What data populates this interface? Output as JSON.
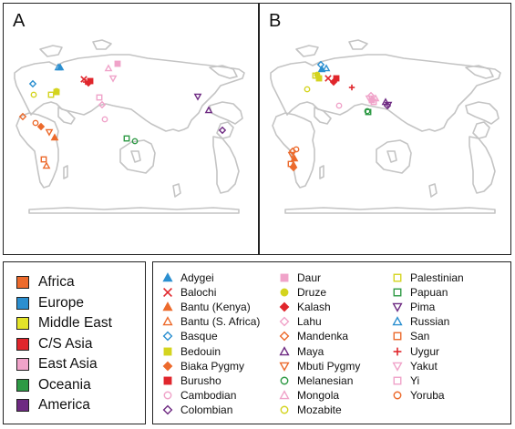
{
  "panels": [
    {
      "id": "a",
      "label": "A"
    },
    {
      "id": "b",
      "label": "B"
    }
  ],
  "regions": [
    {
      "label": "Africa",
      "color": "#ec6a2c"
    },
    {
      "label": "Europe",
      "color": "#2b8fd0"
    },
    {
      "label": "Middle East",
      "color": "#e4e429"
    },
    {
      "label": "C/S Asia",
      "color": "#e0262c"
    },
    {
      "label": "East Asia",
      "color": "#f0a3c9"
    },
    {
      "label": "Oceania",
      "color": "#2e9a45"
    },
    {
      "label": "America",
      "color": "#6e2a82"
    }
  ],
  "populations": [
    {
      "label": "Adygei",
      "marker": "triangle-filled",
      "color": "#2b8fd0"
    },
    {
      "label": "Balochi",
      "marker": "x",
      "color": "#e0262c"
    },
    {
      "label": "Bantu (Kenya)",
      "marker": "triangle-filled",
      "color": "#ec6a2c"
    },
    {
      "label": "Bantu (S. Africa)",
      "marker": "triangle-open",
      "color": "#ec6a2c"
    },
    {
      "label": "Basque",
      "marker": "diamond-open",
      "color": "#2b8fd0"
    },
    {
      "label": "Bedouin",
      "marker": "square-filled",
      "color": "#d4d41f"
    },
    {
      "label": "Biaka Pygmy",
      "marker": "diamond-filled",
      "color": "#ec6a2c"
    },
    {
      "label": "Burusho",
      "marker": "square-filled",
      "color": "#e0262c"
    },
    {
      "label": "Cambodian",
      "marker": "circle-open",
      "color": "#f0a3c9"
    },
    {
      "label": "Colombian",
      "marker": "diamond-open",
      "color": "#6e2a82"
    },
    {
      "label": "Daur",
      "marker": "square-filled",
      "color": "#f0a3c9"
    },
    {
      "label": "Druze",
      "marker": "circle-filled",
      "color": "#d4d41f"
    },
    {
      "label": "Kalash",
      "marker": "diamond-filled",
      "color": "#e0262c"
    },
    {
      "label": "Lahu",
      "marker": "diamond-open",
      "color": "#f0a3c9"
    },
    {
      "label": "Mandenka",
      "marker": "diamond-open",
      "color": "#ec6a2c"
    },
    {
      "label": "Maya",
      "marker": "triangle-open",
      "color": "#6e2a82"
    },
    {
      "label": "Mbuti Pygmy",
      "marker": "triangle-down-open",
      "color": "#ec6a2c"
    },
    {
      "label": "Melanesian",
      "marker": "circle-open",
      "color": "#2e9a45"
    },
    {
      "label": "Mongola",
      "marker": "triangle-open",
      "color": "#f0a3c9"
    },
    {
      "label": "Mozabite",
      "marker": "circle-open",
      "color": "#d4d41f"
    },
    {
      "label": "Palestinian",
      "marker": "square-open",
      "color": "#d4d41f"
    },
    {
      "label": "Papuan",
      "marker": "square-open",
      "color": "#2e9a45"
    },
    {
      "label": "Pima",
      "marker": "triangle-down-open",
      "color": "#6e2a82"
    },
    {
      "label": "Russian",
      "marker": "triangle-open",
      "color": "#2b8fd0"
    },
    {
      "label": "San",
      "marker": "square-open",
      "color": "#ec6a2c"
    },
    {
      "label": "Uygur",
      "marker": "plus",
      "color": "#e0262c"
    },
    {
      "label": "Yakut",
      "marker": "triangle-down-open",
      "color": "#f0a3c9"
    },
    {
      "label": "Yi",
      "marker": "square-open",
      "color": "#f0a3c9"
    },
    {
      "label": "Yoruba",
      "marker": "circle-open",
      "color": "#ec6a2c"
    }
  ]
}
